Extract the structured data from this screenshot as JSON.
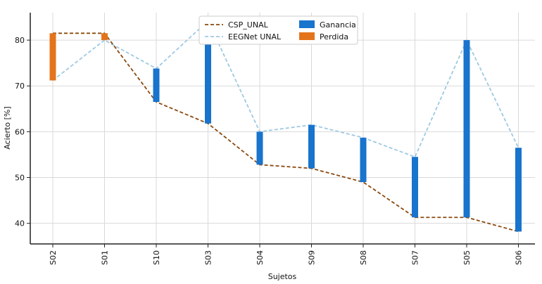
{
  "chart_data": {
    "type": "bar",
    "xlabel": "Sujetos",
    "ylabel": "Acierto [%]",
    "ylim": [
      35.5,
      86
    ],
    "yticks": [
      40,
      50,
      60,
      70,
      80
    ],
    "yticks_labels": [
      "40",
      "50",
      "60",
      "70",
      "80"
    ],
    "categories": [
      "S02",
      "S01",
      "S10",
      "S03",
      "S04",
      "S09",
      "S08",
      "S07",
      "S05",
      "S06"
    ],
    "series": [
      {
        "name": "CSP_UNAL",
        "values": [
          81.5,
          81.5,
          66.5,
          61.8,
          52.8,
          52.0,
          49.0,
          41.3,
          41.3,
          38.2
        ],
        "color": "#8B4A0F"
      },
      {
        "name": "EEGNet UNAL",
        "values": [
          71.2,
          80.0,
          73.8,
          84.2,
          60.0,
          61.5,
          58.7,
          54.5,
          80.0,
          56.5
        ],
        "color": "#9EC9E2"
      }
    ],
    "legend": {
      "position": "top-center",
      "entries": [
        "CSP_UNAL",
        "EEGNet UNAL",
        "Ganancia",
        "Perdida"
      ]
    },
    "bar_colors": {
      "ganancia": "#1874CD",
      "perdida": "#E4741C"
    },
    "grid": true
  }
}
